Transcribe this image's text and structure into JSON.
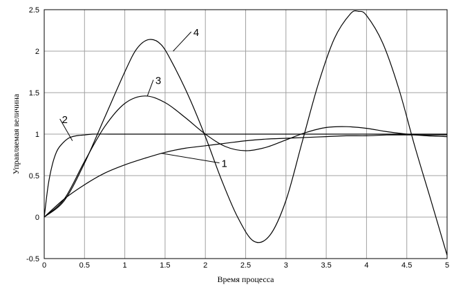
{
  "chart_data": {
    "type": "line",
    "xlabel": "Время процесса",
    "ylabel": "Управляемая величина",
    "xlim": [
      0,
      5
    ],
    "ylim": [
      -0.5,
      2.5
    ],
    "xticks": [
      0,
      0.5,
      1,
      1.5,
      2,
      2.5,
      3,
      3.5,
      4,
      4.5,
      5
    ],
    "yticks": [
      -0.5,
      0,
      0.5,
      1,
      1.5,
      2,
      2.5
    ],
    "xtick_labels": [
      "0",
      "0.5",
      "1",
      "1.5",
      "2",
      "2.5",
      "3",
      "3.5",
      "4",
      "4.5",
      "5"
    ],
    "ytick_labels": [
      "-0.5",
      "0",
      "0.5",
      "1",
      "1.5",
      "2",
      "2.5"
    ],
    "grid": true,
    "series": [
      {
        "name": "1",
        "x": [
          0,
          0.25,
          0.5,
          0.75,
          1,
          1.25,
          1.5,
          1.75,
          2,
          2.25,
          2.5,
          2.75,
          3,
          3.25,
          3.5,
          3.75,
          4,
          4.25,
          4.5,
          4.75,
          5
        ],
        "y": [
          0,
          0.22,
          0.39,
          0.53,
          0.63,
          0.71,
          0.78,
          0.83,
          0.86,
          0.89,
          0.92,
          0.94,
          0.95,
          0.96,
          0.97,
          0.98,
          0.98,
          0.99,
          0.99,
          0.99,
          0.99
        ]
      },
      {
        "name": "2",
        "x": [
          0,
          0.05,
          0.1,
          0.15,
          0.2,
          0.3,
          0.4,
          0.5,
          0.6,
          0.8,
          1,
          1.25,
          1.5,
          2,
          2.5,
          3,
          3.5,
          4,
          4.5,
          5
        ],
        "y": [
          0,
          0.39,
          0.63,
          0.78,
          0.86,
          0.95,
          0.98,
          0.99,
          1.0,
          1.0,
          1.0,
          1.0,
          1.0,
          1.0,
          1.0,
          1.0,
          1.0,
          1.0,
          1.0,
          1.0
        ]
      },
      {
        "name": "3",
        "x": [
          0,
          0.25,
          0.5,
          0.75,
          1,
          1.25,
          1.5,
          1.75,
          2,
          2.25,
          2.5,
          2.75,
          3,
          3.25,
          3.5,
          3.75,
          4,
          4.25,
          4.5,
          4.75,
          5
        ],
        "y": [
          0,
          0.22,
          0.67,
          1.09,
          1.37,
          1.46,
          1.38,
          1.2,
          1.0,
          0.85,
          0.8,
          0.84,
          0.93,
          1.02,
          1.08,
          1.09,
          1.07,
          1.03,
          1.0,
          0.98,
          0.97
        ]
      },
      {
        "name": "4",
        "x": [
          0,
          0.25,
          0.5,
          0.75,
          1,
          1.15,
          1.3,
          1.45,
          1.6,
          1.8,
          2,
          2.2,
          2.4,
          2.6,
          2.8,
          3,
          3.2,
          3.4,
          3.6,
          3.8,
          3.9,
          4,
          4.2,
          4.4,
          4.6,
          4.8,
          5
        ],
        "y": [
          0,
          0.2,
          0.65,
          1.2,
          1.75,
          2.03,
          2.14,
          2.08,
          1.84,
          1.44,
          0.97,
          0.45,
          0.0,
          -0.29,
          -0.22,
          0.2,
          0.9,
          1.6,
          2.15,
          2.45,
          2.48,
          2.43,
          2.1,
          1.55,
          0.85,
          0.2,
          -0.46
        ]
      }
    ],
    "annotations": [
      {
        "text": "1",
        "x": 2.2,
        "y": 0.62,
        "pointer_to": [
          1.45,
          0.77
        ]
      },
      {
        "text": "2",
        "x": 0.22,
        "y": 1.15,
        "pointer_to": [
          0.35,
          0.92
        ]
      },
      {
        "text": "3",
        "x": 1.38,
        "y": 1.62,
        "pointer_to": [
          1.28,
          1.46
        ]
      },
      {
        "text": "4",
        "x": 1.85,
        "y": 2.2,
        "pointer_to": [
          1.6,
          2.0
        ]
      }
    ]
  }
}
